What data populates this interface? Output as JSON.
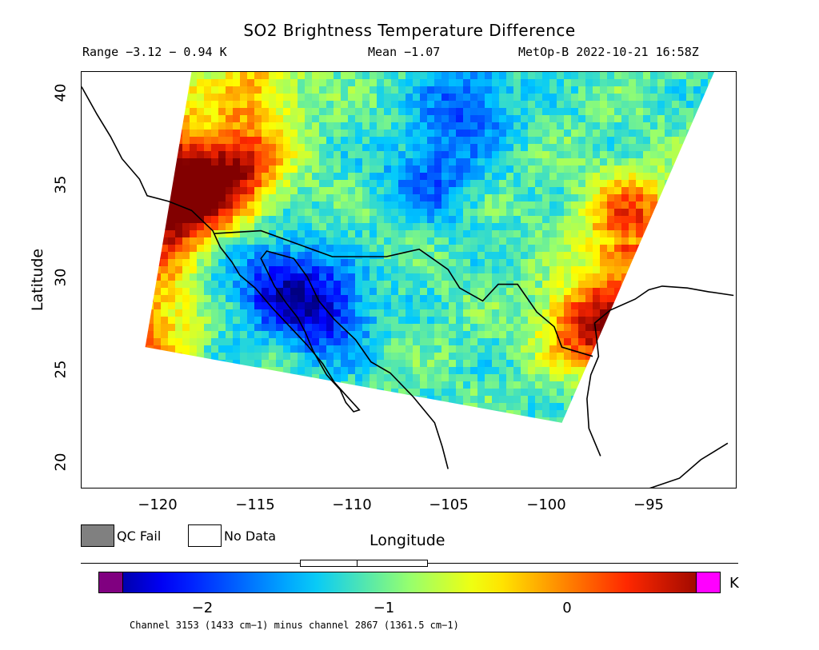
{
  "title": "SO2 Brightness Temperature Difference",
  "range_text": "Range −3.12 − 0.94 K",
  "mean_text": "Mean −1.07",
  "satellite_text": "MetOp-B 2022-10-21 16:58Z",
  "x_axis": {
    "label": "Longitude",
    "ticks": [
      "−120",
      "−115",
      "−110",
      "−105",
      "−100",
      "−95"
    ],
    "range": [
      -124,
      -90
    ]
  },
  "y_axis": {
    "label": "Latitude",
    "ticks": [
      "20",
      "25",
      "30",
      "35",
      "40"
    ],
    "range": [
      18.7,
      41.3
    ]
  },
  "legend": {
    "qc_fail": "QC Fail",
    "no_data": "No Data",
    "qc_fail_color": "#808080",
    "no_data_color": "#ffffff"
  },
  "colorbar": {
    "ticks": [
      "−2",
      "−1",
      "0"
    ],
    "unit": "K",
    "under_color": "#800080",
    "over_color": "#ff00ff",
    "range": [
      -2.45,
      0.75
    ]
  },
  "statistics": {
    "min": -3.12,
    "max": 0.94,
    "mean": -1.07
  },
  "footnote": "Channel 3153 (1433 cm−1) minus channel 2867 (1361.5 cm−1)",
  "swath": {
    "corners_lonlat": [
      [
        -118.3,
        41.3
      ],
      [
        -91.2,
        41.3
      ],
      [
        -99.1,
        22.3
      ],
      [
        -120.7,
        26.4
      ]
    ]
  },
  "features": {
    "hot_spots": [
      {
        "lon": -118.7,
        "lat": 34.5,
        "value": 0.85
      },
      {
        "lon": -116,
        "lat": 36.2,
        "value": 0.4
      },
      {
        "lon": -97.5,
        "lat": 27.6,
        "value": 0.6
      },
      {
        "lon": -95.5,
        "lat": 33.3,
        "value": 0.2
      },
      {
        "lon": -115,
        "lat": 40.5,
        "value": -0.3
      }
    ],
    "cold_spots": [
      {
        "lon": -111.5,
        "lat": 28.3,
        "value": -2.1
      },
      {
        "lon": -106,
        "lat": 35.5,
        "value": -1.7
      },
      {
        "lon": -104,
        "lat": 39.5,
        "value": -1.8
      },
      {
        "lon": -114,
        "lat": 30,
        "value": -1.9
      }
    ]
  }
}
